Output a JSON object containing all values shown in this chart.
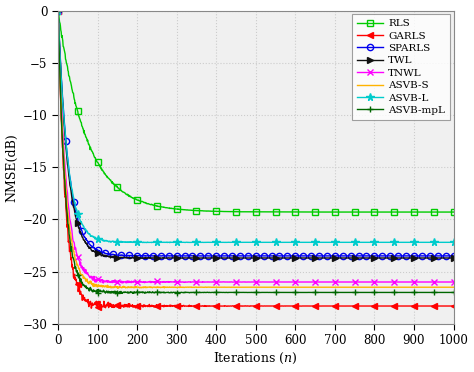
{
  "xlabel": "Iterations (n)",
  "ylabel": "NMSE(dB)",
  "xlim": [
    0,
    1000
  ],
  "ylim": [
    -30,
    0
  ],
  "xticks": [
    0,
    100,
    200,
    300,
    400,
    500,
    600,
    700,
    800,
    900,
    1000
  ],
  "yticks": [
    0,
    -5,
    -10,
    -15,
    -20,
    -25,
    -30
  ],
  "plot_bg": "#F0F0F0",
  "fig_bg": "#FFFFFF",
  "grid_color": "#CCCCCC",
  "series": [
    {
      "label": "RLS",
      "color": "#00CC00",
      "marker": "s",
      "markevery": 50,
      "markersize": 4.5,
      "markerfacecolor": "none",
      "linewidth": 1.0,
      "steady_state": -19.3,
      "decay_rate": 0.014,
      "noise_amp": 0.12
    },
    {
      "label": "GARLS",
      "color": "#FF0000",
      "marker": "<",
      "markevery": 50,
      "markersize": 4.5,
      "markerfacecolor": "same",
      "linewidth": 1.0,
      "steady_state": -28.3,
      "decay_rate": 0.055,
      "noise_amp": 0.38
    },
    {
      "label": "SPARLS",
      "color": "#0000EE",
      "marker": "o",
      "markevery": 20,
      "markersize": 4.5,
      "markerfacecolor": "none",
      "linewidth": 1.0,
      "steady_state": -23.5,
      "decay_rate": 0.038,
      "noise_amp": 0.08
    },
    {
      "label": "TWL",
      "color": "#111111",
      "marker": ">",
      "markevery": 50,
      "markersize": 4.5,
      "markerfacecolor": "same",
      "linewidth": 1.0,
      "steady_state": -23.7,
      "decay_rate": 0.04,
      "noise_amp": 0.1
    },
    {
      "label": "TNWL",
      "color": "#FF00FF",
      "marker": "x",
      "markevery": 50,
      "markersize": 4.5,
      "markerfacecolor": "same",
      "linewidth": 1.0,
      "steady_state": -26.0,
      "decay_rate": 0.048,
      "noise_amp": 0.2
    },
    {
      "label": "ASVB-S",
      "color": "#FFB300",
      "marker": "None",
      "markevery": 50,
      "markersize": 0,
      "markerfacecolor": "same",
      "linewidth": 1.0,
      "steady_state": -26.5,
      "decay_rate": 0.052,
      "noise_amp": 0.15
    },
    {
      "label": "ASVB-L",
      "color": "#00CCCC",
      "marker": "*",
      "markevery": 50,
      "markersize": 5.5,
      "markerfacecolor": "same",
      "linewidth": 1.0,
      "steady_state": -22.2,
      "decay_rate": 0.042,
      "noise_amp": 0.1
    },
    {
      "label": "ASVB-mpL",
      "color": "#006600",
      "marker": "+",
      "markevery": 50,
      "markersize": 5.0,
      "markerfacecolor": "same",
      "linewidth": 1.0,
      "steady_state": -27.0,
      "decay_rate": 0.055,
      "noise_amp": 0.18
    }
  ]
}
